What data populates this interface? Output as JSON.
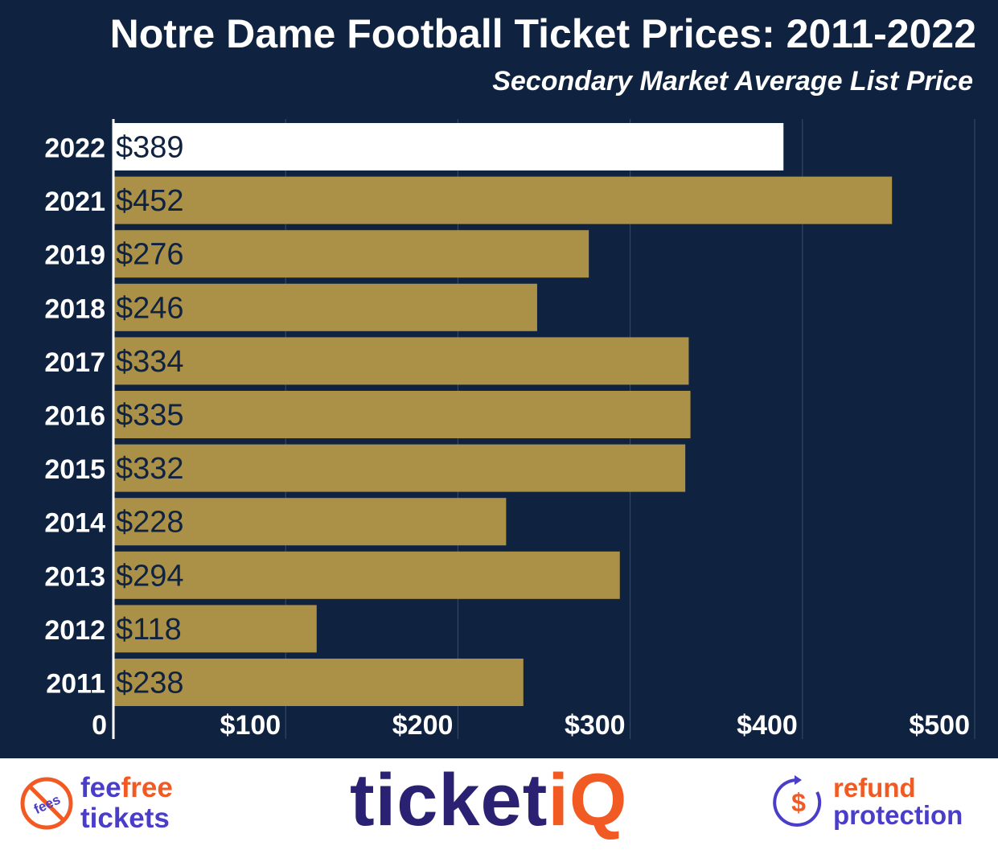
{
  "chart_data": {
    "type": "bar",
    "orientation": "horizontal",
    "title": "Notre Dame Football Ticket Prices: 2011-2022",
    "subtitle": "Secondary Market Average List Price",
    "xlabel": "",
    "ylabel": "",
    "categories": [
      "2022",
      "2021",
      "2019",
      "2018",
      "2017",
      "2016",
      "2015",
      "2014",
      "2013",
      "2012",
      "2011"
    ],
    "values": [
      389,
      452,
      276,
      246,
      334,
      335,
      332,
      228,
      294,
      118,
      238
    ],
    "value_labels": [
      "$389",
      "$452",
      "$276",
      "$246",
      "$334",
      "$335",
      "$332",
      "$228",
      "$294",
      "$118",
      "$238"
    ],
    "xlim": [
      0,
      500
    ],
    "x_ticks": [
      0,
      100,
      200,
      300,
      400,
      500
    ],
    "x_tick_labels": [
      "0",
      "$100",
      "$200",
      "$300",
      "$400",
      "$500"
    ],
    "grid": "vertical",
    "highlight_category": "2022",
    "colors": {
      "background": "#0f2341",
      "bar": "#ab9048",
      "highlight_bar": "#ffffff",
      "gridline": "#3a4c68",
      "text": "#ffffff",
      "value_label": "#0f2341"
    }
  },
  "footer": {
    "fee_free": {
      "icon": "no-fees-icon",
      "icon_text": "fees",
      "line1_a": "fee",
      "line1_b": "free",
      "line2": "tickets"
    },
    "logo": {
      "main": "ticket",
      "accent": "iQ"
    },
    "refund": {
      "icon": "refund-dollar-icon",
      "line1": "refund",
      "line2": "protection"
    }
  }
}
